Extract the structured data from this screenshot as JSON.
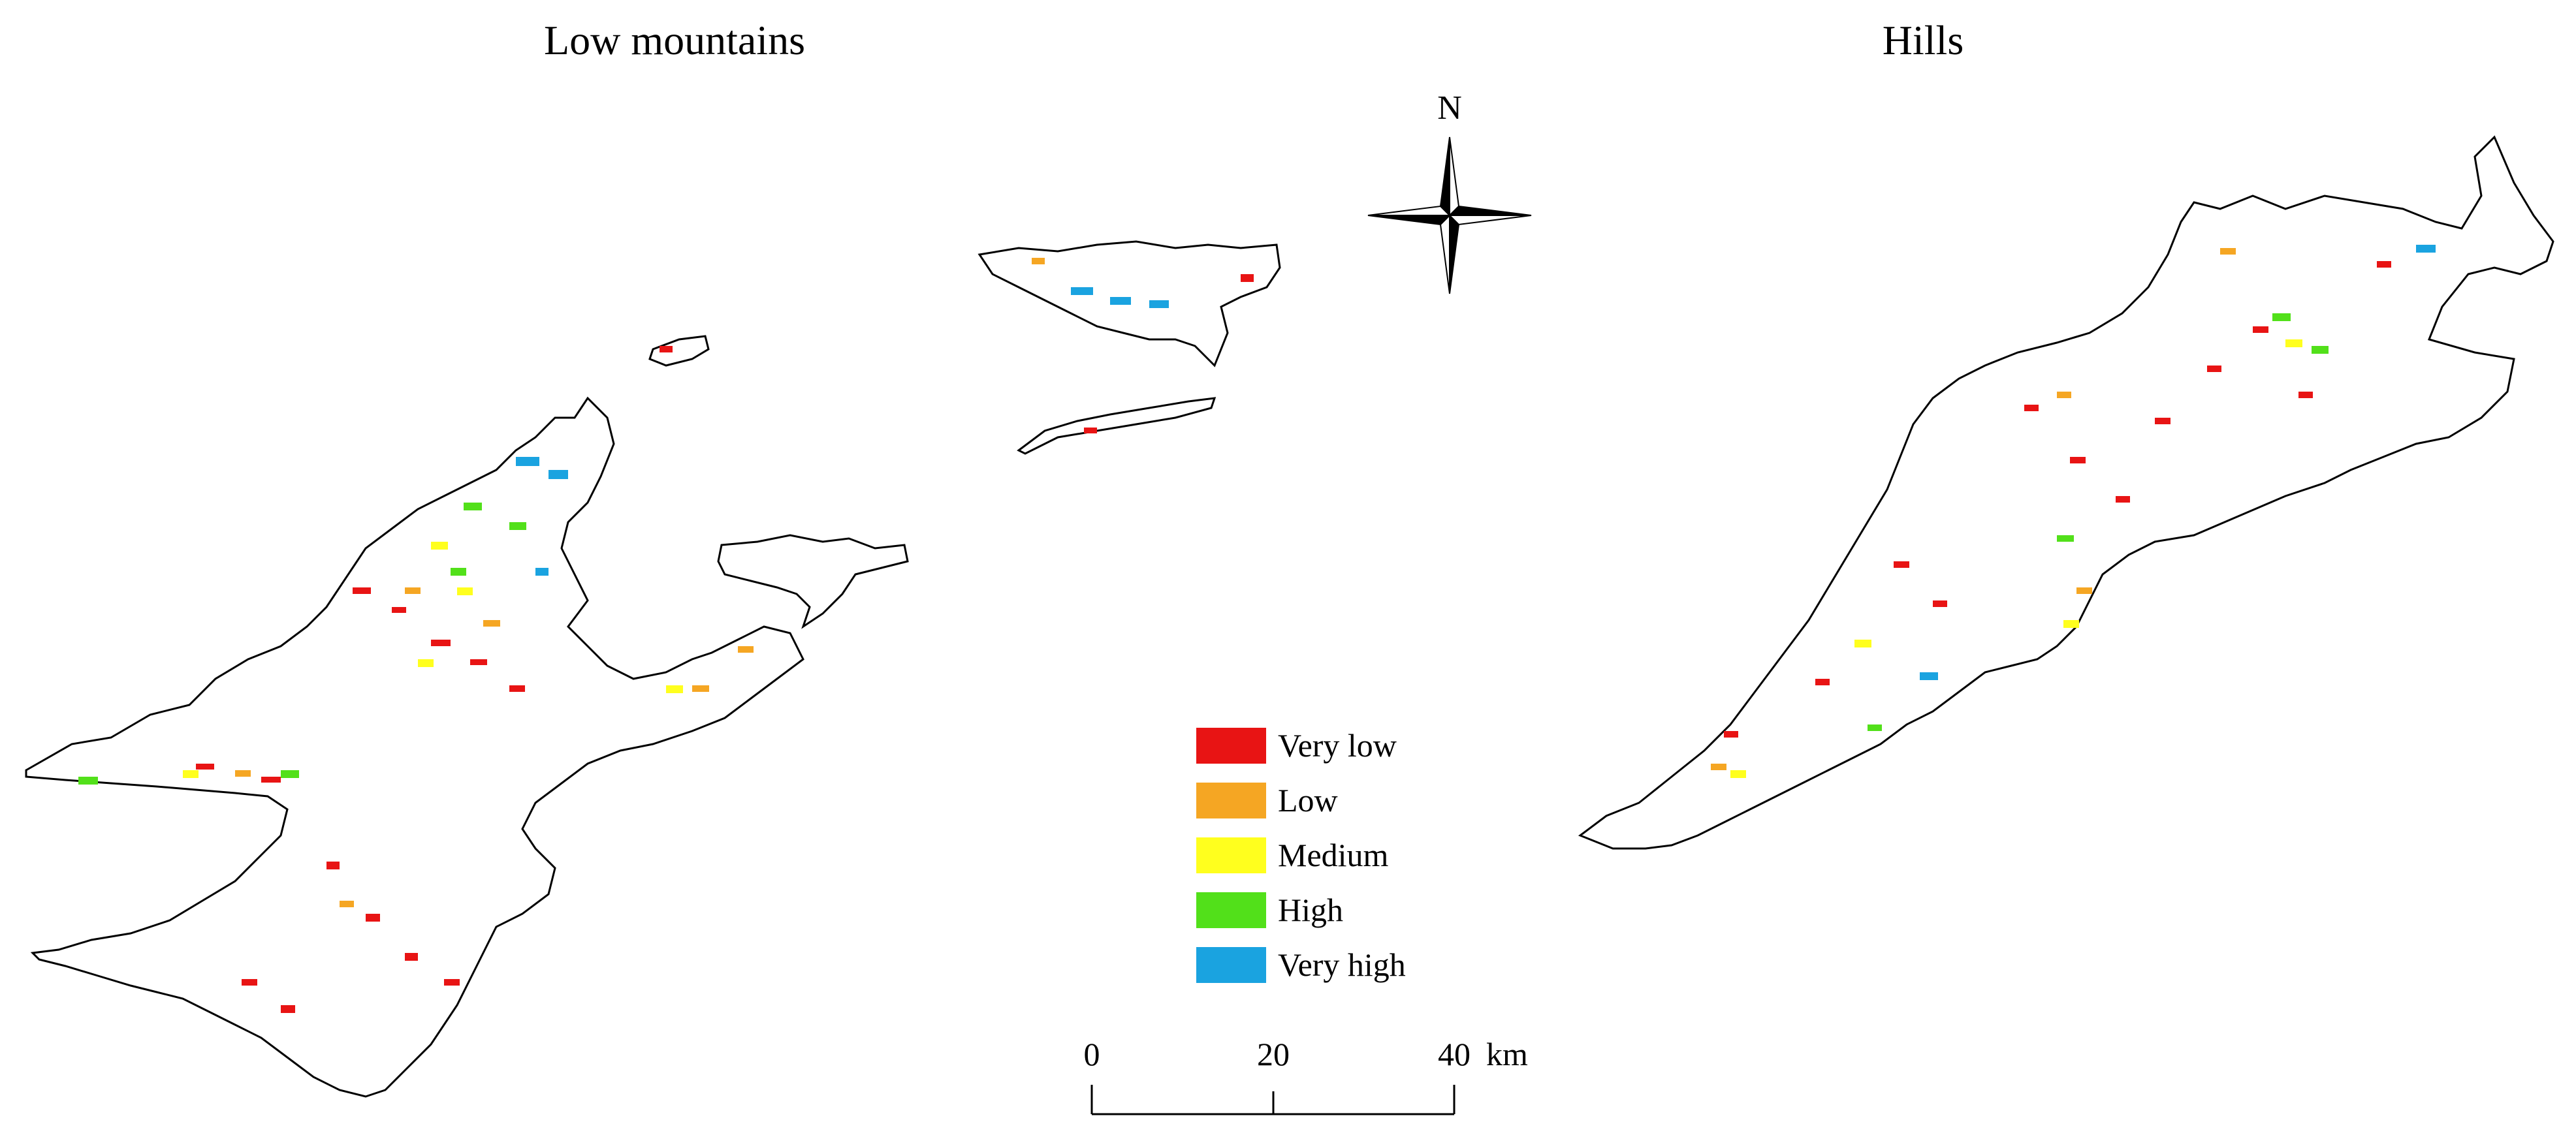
{
  "titles": {
    "left": "Low mountains",
    "right": "Hills"
  },
  "compass": {
    "north_label": "N",
    "icon": "north-arrow-compass-rose"
  },
  "legend": {
    "items": [
      {
        "label": "Very low",
        "color": "#e81414"
      },
      {
        "label": "Low",
        "color": "#f5a623"
      },
      {
        "label": "Medium",
        "color": "#ffff1e"
      },
      {
        "label": "High",
        "color": "#52e01a"
      },
      {
        "label": "Very high",
        "color": "#1aa3e0"
      }
    ]
  },
  "scale_bar": {
    "ticks": [
      "0",
      "20",
      "40"
    ],
    "unit": "km"
  }
}
